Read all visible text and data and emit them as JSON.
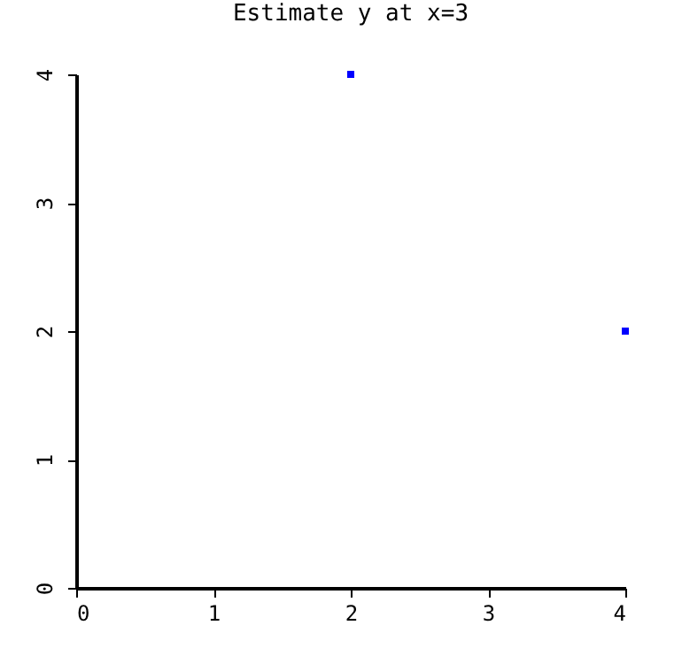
{
  "chart_data": {
    "type": "scatter",
    "title": "Estimate y at x=3",
    "x": [
      2,
      4
    ],
    "series": [
      {
        "color": "#0000ff",
        "values": [
          4,
          2
        ]
      }
    ],
    "xlim": [
      0,
      4
    ],
    "ylim": [
      0,
      4
    ],
    "xticks": [
      0,
      1,
      2,
      3,
      4
    ],
    "yticks": [
      0,
      1,
      2,
      3,
      4
    ],
    "marker": "square",
    "grid": false
  }
}
